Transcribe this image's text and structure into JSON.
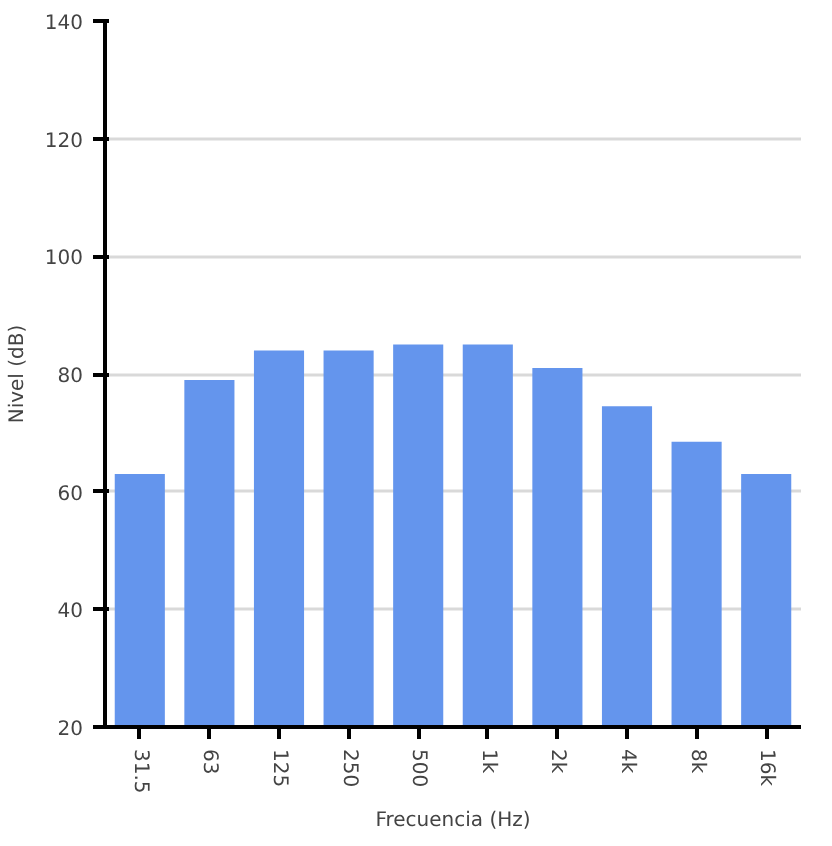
{
  "chart_data": {
    "type": "bar",
    "xlabel": "Frecuencia (Hz)",
    "ylabel": "Nivel (dB)",
    "categories": [
      "31.5",
      "63",
      "125",
      "250",
      "500",
      "1k",
      "2k",
      "4k",
      "8k",
      "16k"
    ],
    "values": [
      63,
      79,
      84,
      84,
      85,
      85,
      81,
      74.5,
      68.5,
      63
    ],
    "color": "#6495ed",
    "ylim": [
      20,
      140
    ],
    "yticks": [
      20,
      40,
      60,
      80,
      100,
      120,
      140
    ],
    "grid": "y"
  }
}
